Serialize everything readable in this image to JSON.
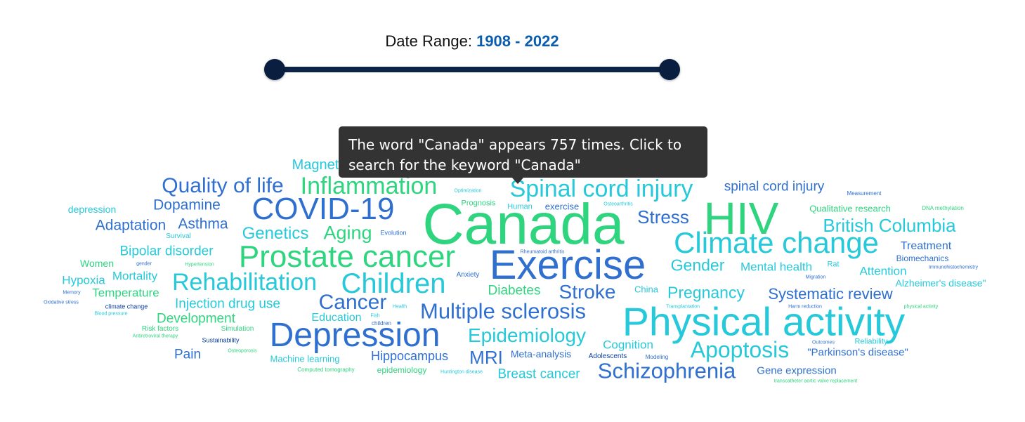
{
  "date_range": {
    "label": "Date Range:",
    "start": "1908",
    "separator": "-",
    "end": "2022",
    "slider_min": 1908,
    "slider_max": 2022,
    "selected_start": 1908,
    "selected_end": 2022
  },
  "tooltip": {
    "text": "The word \"Canada\" appears 757 times. Click to search for the keyword \"Canada\""
  },
  "colors": {
    "blue": "#2f6fd0",
    "teal": "#26c9d9",
    "green": "#2fd47f",
    "navy": "#0a1f3f",
    "accent": "#0b5cad"
  },
  "words": [
    {
      "text": "Canada",
      "color": "#2fd47f"
    },
    {
      "text": "Exercise",
      "color": "#2f6fd0"
    },
    {
      "text": "Physical activity",
      "color": "#26c9d9"
    },
    {
      "text": "HIV",
      "color": "#2fd47f"
    },
    {
      "text": "Depression",
      "color": "#2f6fd0"
    },
    {
      "text": "COVID-19",
      "color": "#2f6fd0"
    },
    {
      "text": "Prostate cancer",
      "color": "#2fd47f"
    },
    {
      "text": "Climate change",
      "color": "#26c9d9"
    },
    {
      "text": "Children",
      "color": "#26c9d9"
    },
    {
      "text": "Spinal cord injury",
      "color": "#26c9d9"
    },
    {
      "text": "Rehabilitation",
      "color": "#26c9d9"
    },
    {
      "text": "Multiple sclerosis",
      "color": "#2f6fd0"
    },
    {
      "text": "Inflammation",
      "color": "#2fd47f"
    },
    {
      "text": "Quality of life",
      "color": "#2f6fd0"
    },
    {
      "text": "Schizophrenia",
      "color": "#2f6fd0"
    },
    {
      "text": "Apoptosis",
      "color": "#26c9d9"
    },
    {
      "text": "Epidemiology",
      "color": "#26c9d9"
    },
    {
      "text": "Cancer",
      "color": "#2f6fd0"
    },
    {
      "text": "British Columbia",
      "color": "#26c9d9"
    },
    {
      "text": "Stroke",
      "color": "#2f6fd0"
    },
    {
      "text": "Stress",
      "color": "#2f6fd0"
    },
    {
      "text": "Aging",
      "color": "#2fd47f"
    },
    {
      "text": "Genetics",
      "color": "#26c9d9"
    },
    {
      "text": "MRI",
      "color": "#2f6fd0"
    },
    {
      "text": "Magnet",
      "color": "#26c9d9"
    },
    {
      "text": "Pregnancy",
      "color": "#26c9d9"
    },
    {
      "text": "Gender",
      "color": "#26c9d9"
    },
    {
      "text": "Systematic review",
      "color": "#2f6fd0"
    },
    {
      "text": "Dopamine",
      "color": "#2f6fd0"
    },
    {
      "text": "Adaptation",
      "color": "#2f6fd0"
    },
    {
      "text": "Asthma",
      "color": "#2f6fd0"
    },
    {
      "text": "Bipolar disorder",
      "color": "#26c9d9"
    },
    {
      "text": "spinal cord injury",
      "color": "#2f6fd0"
    },
    {
      "text": "Injection drug use",
      "color": "#26c9d9"
    },
    {
      "text": "Development",
      "color": "#2fd47f"
    },
    {
      "text": "Diabetes",
      "color": "#2fd47f"
    },
    {
      "text": "Hippocampus",
      "color": "#2f6fd0"
    },
    {
      "text": "Breast cancer",
      "color": "#26c9d9"
    },
    {
      "text": "Mental health",
      "color": "#26c9d9"
    },
    {
      "text": "Mortality",
      "color": "#26c9d9"
    },
    {
      "text": "Hypoxia",
      "color": "#26c9d9"
    },
    {
      "text": "Temperature",
      "color": "#2fd47f"
    },
    {
      "text": "Pain",
      "color": "#2f6fd0"
    },
    {
      "text": "Cognition",
      "color": "#26c9d9"
    },
    {
      "text": "Attention",
      "color": "#26c9d9"
    },
    {
      "text": "Education",
      "color": "#26c9d9"
    },
    {
      "text": "Treatment",
      "color": "#2f6fd0"
    },
    {
      "text": "Gene expression",
      "color": "#2f6fd0"
    },
    {
      "text": "\"Parkinson's disease\"",
      "color": "#2f6fd0"
    },
    {
      "text": "Alzheimer's disease\"",
      "color": "#26c9d9"
    },
    {
      "text": "Qualitative research",
      "color": "#2fd47f"
    },
    {
      "text": "depression",
      "color": "#26c9d9"
    },
    {
      "text": "Women",
      "color": "#2fd47f"
    },
    {
      "text": "Meta-analysis",
      "color": "#2f6fd0"
    },
    {
      "text": "Machine learning",
      "color": "#26c9d9"
    },
    {
      "text": "exercise",
      "color": "#2f6fd0"
    },
    {
      "text": "China",
      "color": "#26c9d9"
    },
    {
      "text": "Biomechanics",
      "color": "#2f6fd0"
    },
    {
      "text": "epidemiology",
      "color": "#2fd47f"
    },
    {
      "text": "Prognosis",
      "color": "#2fd47f"
    },
    {
      "text": "Human",
      "color": "#26c9d9"
    },
    {
      "text": "Adolescents",
      "color": "#0b3fa0"
    },
    {
      "text": "Rat",
      "color": "#26c9d9"
    },
    {
      "text": "Reliability",
      "color": "#26c9d9"
    },
    {
      "text": "Survival",
      "color": "#26c9d9"
    },
    {
      "text": "Evolution",
      "color": "#2f6fd0"
    },
    {
      "text": "Anxiety",
      "color": "#2f6fd0"
    },
    {
      "text": "Risk factors",
      "color": "#2fd47f"
    },
    {
      "text": "Simulation",
      "color": "#2fd47f"
    },
    {
      "text": "Sustainability",
      "color": "#0b3fa0"
    },
    {
      "text": "climate change",
      "color": "#0b3fa0"
    },
    {
      "text": "children",
      "color": "#2f6fd0"
    },
    {
      "text": "Modeling",
      "color": "#2f6fd0"
    },
    {
      "text": "Measurement",
      "color": "#2f6fd0"
    },
    {
      "text": "Optimization",
      "color": "#26c9d9"
    },
    {
      "text": "Osteoarthritis",
      "color": "#26c9d9"
    },
    {
      "text": "DNA methylation",
      "color": "#2fd47f"
    },
    {
      "text": "Rheumatoid arthritis",
      "color": "#2f6fd0"
    },
    {
      "text": "gender",
      "color": "#2f6fd0"
    },
    {
      "text": "Hypertension",
      "color": "#2fd47f"
    },
    {
      "text": "Memory",
      "color": "#2f6fd0"
    },
    {
      "text": "Oxidative stress",
      "color": "#2f6fd0"
    },
    {
      "text": "Blood pressure",
      "color": "#26c9d9"
    },
    {
      "text": "Antiretroviral therapy",
      "color": "#2fd47f"
    },
    {
      "text": "Osteoporosis",
      "color": "#2fd47f"
    },
    {
      "text": "Computed tomography",
      "color": "#2fd47f"
    },
    {
      "text": "Huntington disease",
      "color": "#26c9d9"
    },
    {
      "text": "Health",
      "color": "#26c9d9"
    },
    {
      "text": "Fish",
      "color": "#26c9d9"
    },
    {
      "text": "Transplantation",
      "color": "#26c9d9"
    },
    {
      "text": "Harm reduction",
      "color": "#2f6fd0"
    },
    {
      "text": "physical activity",
      "color": "#2fd47f"
    },
    {
      "text": "Outcomes",
      "color": "#2f6fd0"
    },
    {
      "text": "Immunohistochemistry",
      "color": "#2f6fd0"
    },
    {
      "text": "Migration",
      "color": "#2f6fd0"
    },
    {
      "text": "transcatheter aortic valve replacement",
      "color": "#2fd47f"
    }
  ]
}
